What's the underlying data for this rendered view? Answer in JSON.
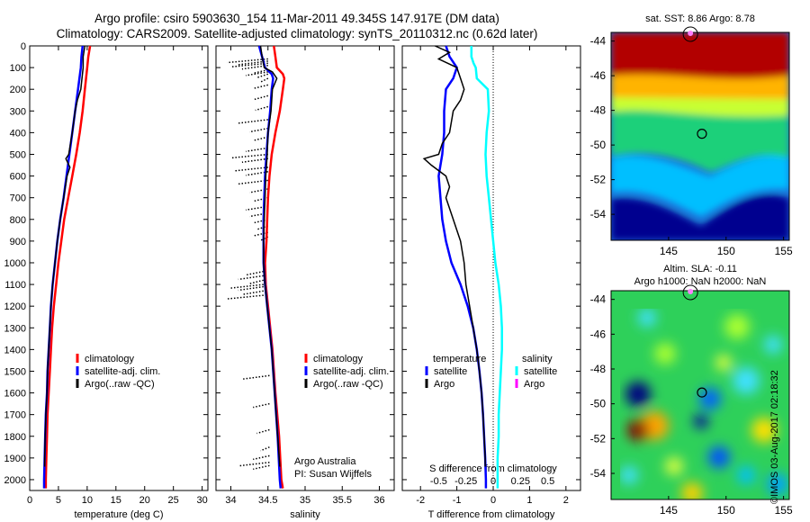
{
  "header": {
    "line1": "Argo profile: csiro 5903630_154 11-Mar-2011 49.345S 147.917E (DM data)",
    "line2": "Climatology: CARS2009. Satellite-adjusted climatology: synTS_20110312.nc (0.62d later)"
  },
  "credit": "©IMOS 03-Aug-2017 02:18:32",
  "colors": {
    "climatology": "#ff0000",
    "satellite": "#0000ff",
    "argo": "#000000",
    "salinity_sat": "#00ffff",
    "salinity_argo": "#ff00ff"
  },
  "chart_data": [
    {
      "type": "line",
      "xlabel": "temperature (deg C)",
      "xlim": [
        0,
        31
      ],
      "ylim": [
        2050,
        0
      ],
      "xticks": [
        "0",
        "5",
        "10",
        "15",
        "20",
        "25",
        "30"
      ],
      "yticks": [
        "0",
        "100",
        "200",
        "300",
        "400",
        "500",
        "600",
        "700",
        "800",
        "900",
        "1000",
        "1100",
        "1200",
        "1300",
        "1400",
        "1500",
        "1600",
        "1700",
        "1800",
        "1900",
        "2000"
      ],
      "legend": [
        "climatology",
        "satellite-adj. clim.",
        "Argo(..raw -QC)"
      ],
      "series": [
        {
          "name": "climatology",
          "color": "#ff0000",
          "depth": [
            0,
            50,
            100,
            200,
            300,
            400,
            500,
            600,
            700,
            800,
            900,
            1000,
            1100,
            1200,
            1300,
            1400,
            1500,
            1600,
            1700,
            1800,
            1900,
            2000,
            2040
          ],
          "values": [
            10.5,
            10.2,
            10.0,
            9.6,
            9.2,
            8.7,
            8.1,
            7.4,
            6.7,
            6.0,
            5.5,
            5.0,
            4.6,
            4.2,
            3.9,
            3.7,
            3.5,
            3.3,
            3.1,
            3.0,
            2.9,
            2.8,
            2.8
          ]
        },
        {
          "name": "satellite-adj. clim.",
          "color": "#0000ff",
          "depth": [
            0,
            50,
            100,
            200,
            300,
            400,
            500,
            600,
            700,
            800,
            900,
            1000,
            1100,
            1200,
            1300,
            1400,
            1500,
            1600,
            1700,
            1800,
            1900,
            2000,
            2040
          ],
          "values": [
            9.2,
            9.0,
            8.9,
            8.4,
            7.9,
            7.4,
            6.9,
            6.4,
            5.9,
            5.3,
            4.8,
            4.4,
            4.0,
            3.7,
            3.5,
            3.3,
            3.1,
            3.0,
            2.8,
            2.7,
            2.6,
            2.5,
            2.5
          ]
        },
        {
          "name": "Argo(..raw -QC)",
          "color": "#000000",
          "depth": [
            0,
            50,
            100,
            150,
            200,
            250,
            300,
            400,
            500,
            520,
            560,
            600,
            700,
            800,
            900,
            1000,
            1100,
            1200,
            1300,
            1400,
            1500,
            1600,
            1700,
            1800,
            1900,
            1940
          ],
          "values": [
            9.6,
            9.3,
            9.3,
            9.1,
            8.9,
            8.3,
            7.9,
            7.4,
            6.8,
            6.3,
            7.0,
            6.5,
            5.9,
            5.3,
            4.8,
            4.4,
            4.0,
            3.7,
            3.5,
            3.3,
            3.1,
            3.0,
            2.8,
            2.7,
            2.6,
            2.6
          ]
        }
      ]
    },
    {
      "type": "line",
      "xlabel": "salinity",
      "xlim": [
        33.8,
        36.2
      ],
      "ylim": [
        2050,
        0
      ],
      "xticks": [
        "34",
        "34.5",
        "35",
        "35.5",
        "36"
      ],
      "legend": [
        "climatology",
        "satellite-adj. clim.",
        "Argo(..raw -QC)"
      ],
      "annotation": [
        "Argo Australia",
        "PI: Susan Wijffels"
      ],
      "series": [
        {
          "name": "climatology",
          "color": "#ff0000",
          "depth": [
            0,
            50,
            100,
            130,
            150,
            200,
            300,
            400,
            500,
            600,
            700,
            800,
            900,
            1000,
            1100,
            1200,
            1400,
            1600,
            1800,
            2000,
            2040
          ],
          "values": [
            34.58,
            34.6,
            34.62,
            34.7,
            34.72,
            34.7,
            34.66,
            34.6,
            34.55,
            34.52,
            34.5,
            34.49,
            34.48,
            34.46,
            34.47,
            34.5,
            34.56,
            34.6,
            34.65,
            34.68,
            34.7
          ]
        },
        {
          "name": "satellite-adj. clim.",
          "color": "#0000ff",
          "depth": [
            0,
            50,
            100,
            130,
            150,
            200,
            300,
            400,
            500,
            600,
            700,
            800,
            900,
            1000,
            1100,
            1200,
            1400,
            1600,
            1800,
            2000,
            2040
          ],
          "values": [
            34.38,
            34.42,
            34.46,
            34.55,
            34.57,
            34.55,
            34.53,
            34.5,
            34.48,
            34.46,
            34.45,
            34.44,
            34.44,
            34.44,
            34.46,
            34.49,
            34.55,
            34.59,
            34.63,
            34.66,
            34.67
          ]
        },
        {
          "name": "Argo(..raw -QC)",
          "color": "#000000",
          "depth": [
            0,
            50,
            100,
            120,
            150,
            200,
            300,
            400,
            500,
            600,
            700,
            800,
            900,
            1000,
            1100,
            1200,
            1400,
            1600,
            1800,
            1940
          ],
          "values": [
            34.4,
            34.42,
            34.45,
            34.56,
            34.62,
            34.56,
            34.54,
            34.5,
            34.49,
            34.47,
            34.46,
            34.45,
            34.44,
            34.44,
            34.46,
            34.49,
            34.55,
            34.59,
            34.63,
            34.66
          ]
        }
      ]
    },
    {
      "type": "line",
      "xlabel": "T difference from climatology",
      "xlabel2": "S difference from climatology",
      "xlim": [
        -2.5,
        2.4
      ],
      "ylim": [
        2050,
        0
      ],
      "xticks": [
        "-2",
        "-1",
        "0",
        "1",
        "2"
      ],
      "xticks_s": [
        "-0.5",
        "-0.25",
        "0",
        "0.25",
        "0.5"
      ],
      "xticks_s_values": [
        -0.5,
        -0.25,
        0,
        0.25,
        0.5
      ],
      "legend_t": [
        "temperature",
        "satellite",
        "Argo"
      ],
      "legend_s": [
        "salinity",
        "satellite",
        "Argo"
      ],
      "series": [
        {
          "name": "T satellite",
          "color": "#0000ff",
          "depth": [
            0,
            50,
            100,
            150,
            200,
            300,
            400,
            500,
            600,
            700,
            800,
            900,
            1000,
            1100,
            1200,
            1300,
            1400,
            1500,
            1600,
            1700,
            1800,
            1900,
            2000,
            2040
          ],
          "values": [
            -1.3,
            -1.2,
            -1.0,
            -1.1,
            -1.3,
            -1.35,
            -1.35,
            -1.4,
            -1.5,
            -1.45,
            -1.4,
            -1.3,
            -1.15,
            -0.9,
            -0.7,
            -0.55,
            -0.45,
            -0.38,
            -0.32,
            -0.28,
            -0.25,
            -0.22,
            -0.2,
            -0.2
          ]
        },
        {
          "name": "T Argo",
          "color": "#000000",
          "depth": [
            0,
            30,
            60,
            100,
            150,
            200,
            250,
            300,
            400,
            450,
            500,
            520,
            550,
            600,
            650,
            700,
            800,
            900,
            1000,
            1100,
            1200,
            1300,
            1400,
            1500,
            1600,
            1700,
            1800,
            1900,
            1940
          ],
          "values": [
            -1.6,
            -1.2,
            -1.5,
            -1.0,
            -0.9,
            -0.8,
            -0.9,
            -1.1,
            -1.2,
            -1.4,
            -1.5,
            -1.9,
            -1.7,
            -1.3,
            -1.2,
            -1.3,
            -1.1,
            -0.9,
            -0.8,
            -0.75,
            -0.65,
            -0.55,
            -0.45,
            -0.38,
            -0.32,
            -0.28,
            -0.25,
            -0.22,
            -0.22
          ]
        },
        {
          "name": "S satellite",
          "color": "#00ffff",
          "depth": [
            0,
            50,
            80,
            100,
            150,
            200,
            300,
            400,
            500,
            600,
            700,
            800,
            900,
            1000,
            1100,
            1200,
            1300,
            1400,
            1500,
            1600,
            1700,
            1800,
            1900,
            2000,
            2040
          ],
          "values": [
            -0.2,
            -0.2,
            -0.18,
            -0.16,
            -0.15,
            -0.05,
            -0.04,
            -0.06,
            -0.07,
            -0.06,
            -0.04,
            -0.02,
            0.0,
            0.02,
            0.05,
            0.07,
            0.08,
            0.08,
            0.07,
            0.06,
            0.05,
            0.05,
            0.04,
            0.04,
            0.04
          ]
        }
      ]
    },
    {
      "type": "heatmap",
      "title": "sat. SST: 8.86 Argo: 8.78",
      "xticks": [
        "145",
        "150",
        "155"
      ],
      "yticks": [
        "-44",
        "-46",
        "-48",
        "-50",
        "-52",
        "-54"
      ],
      "xlim": [
        140,
        155.5
      ],
      "ylim": [
        -55.5,
        -43.5
      ],
      "marker": {
        "lon": 147.9,
        "lat": -49.35
      }
    },
    {
      "type": "heatmap",
      "title": "Altim. SLA: -0.11",
      "subtitle": "Argo h1000: NaN h2000: NaN",
      "xticks": [
        "145",
        "150",
        "155"
      ],
      "yticks": [
        "-44",
        "-46",
        "-48",
        "-50",
        "-52",
        "-54"
      ],
      "xlim": [
        140,
        155.5
      ],
      "ylim": [
        -55.5,
        -43.5
      ],
      "marker": {
        "lon": 147.9,
        "lat": -49.35
      }
    }
  ]
}
